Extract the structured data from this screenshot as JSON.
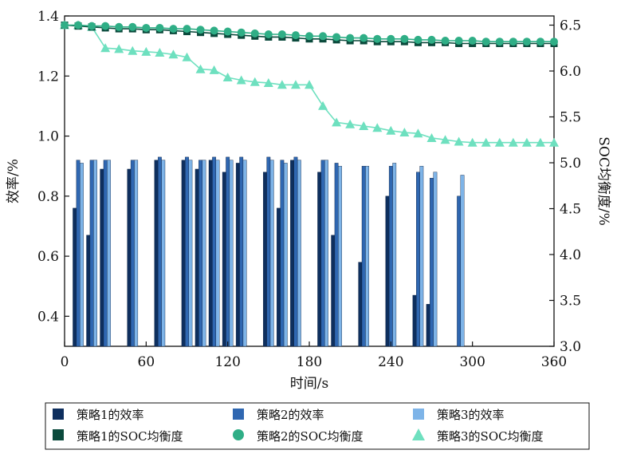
{
  "chart_data": {
    "type": "bar",
    "x_unit_axis": "time",
    "xlabel": "时间/s",
    "ylabel_left": "效率/%",
    "ylabel_right": "SOC均衡度/%",
    "xlim": [
      0,
      360
    ],
    "ylim_left": [
      0.3,
      1.4
    ],
    "ylim_right": [
      3.0,
      6.6
    ],
    "x_ticks": [
      0,
      60,
      120,
      180,
      240,
      300,
      360
    ],
    "y_left_ticks": [
      0.4,
      0.6,
      0.8,
      1.0,
      1.2,
      1.4
    ],
    "y_right_ticks": [
      3.0,
      3.5,
      4.0,
      4.5,
      5.0,
      5.5,
      6.0,
      6.5
    ],
    "legend_position": "bottom",
    "bar_x": [
      10,
      20,
      30,
      50,
      70,
      90,
      100,
      110,
      120,
      130,
      150,
      160,
      170,
      190,
      200,
      220,
      240,
      260,
      270,
      290
    ],
    "bar_series": [
      {
        "name": "策略1的效率",
        "color": "#0e2f5e",
        "values": [
          0.76,
          0.67,
          0.89,
          0.89,
          0.92,
          0.92,
          0.89,
          0.92,
          0.88,
          0.91,
          0.88,
          0.76,
          0.92,
          0.88,
          0.67,
          0.58,
          0.8,
          0.47,
          0.44,
          0.3
        ]
      },
      {
        "name": "策略2的效率",
        "color": "#2f67b1",
        "values": [
          0.92,
          0.92,
          0.92,
          0.92,
          0.93,
          0.93,
          0.92,
          0.93,
          0.93,
          0.93,
          0.93,
          0.92,
          0.93,
          0.92,
          0.91,
          0.9,
          0.9,
          0.88,
          0.86,
          0.8
        ]
      },
      {
        "name": "策略3的效率",
        "color": "#7eb4e8",
        "values": [
          0.91,
          0.92,
          0.92,
          0.92,
          0.92,
          0.92,
          0.92,
          0.92,
          0.92,
          0.92,
          0.92,
          0.91,
          0.92,
          0.92,
          0.9,
          0.9,
          0.91,
          0.9,
          0.88,
          0.87
        ]
      }
    ],
    "soc_x": [
      0,
      10,
      20,
      30,
      40,
      50,
      60,
      70,
      80,
      90,
      100,
      110,
      120,
      130,
      140,
      150,
      160,
      170,
      180,
      190,
      200,
      210,
      220,
      230,
      240,
      250,
      260,
      270,
      280,
      290,
      300,
      310,
      320,
      330,
      340,
      350,
      360
    ],
    "soc_series": [
      {
        "name": "策略1的SOC均衡度",
        "color": "#0b4a3c",
        "marker": "square",
        "values": [
          6.5,
          6.49,
          6.48,
          6.47,
          6.46,
          6.46,
          6.45,
          6.45,
          6.44,
          6.43,
          6.42,
          6.41,
          6.4,
          6.39,
          6.38,
          6.37,
          6.37,
          6.36,
          6.35,
          6.35,
          6.34,
          6.33,
          6.33,
          6.32,
          6.32,
          6.32,
          6.31,
          6.31,
          6.31,
          6.3,
          6.3,
          6.3,
          6.3,
          6.3,
          6.3,
          6.3,
          6.3
        ]
      },
      {
        "name": "策略2的SOC均衡度",
        "color": "#2fae86",
        "marker": "circle",
        "values": [
          6.5,
          6.5,
          6.49,
          6.49,
          6.48,
          6.48,
          6.47,
          6.47,
          6.46,
          6.46,
          6.45,
          6.44,
          6.43,
          6.42,
          6.41,
          6.4,
          6.4,
          6.39,
          6.38,
          6.38,
          6.37,
          6.36,
          6.36,
          6.35,
          6.35,
          6.35,
          6.34,
          6.34,
          6.33,
          6.33,
          6.33,
          6.32,
          6.32,
          6.32,
          6.32,
          6.32,
          6.32
        ]
      },
      {
        "name": "策略3的SOC均衡度",
        "color": "#6ee0bf",
        "marker": "triangle",
        "values": [
          6.5,
          6.5,
          6.48,
          6.25,
          6.24,
          6.22,
          6.21,
          6.2,
          6.18,
          6.15,
          6.02,
          6.01,
          5.93,
          5.9,
          5.88,
          5.87,
          5.85,
          5.85,
          5.85,
          5.62,
          5.44,
          5.42,
          5.4,
          5.38,
          5.35,
          5.33,
          5.32,
          5.27,
          5.25,
          5.23,
          5.22,
          5.22,
          5.22,
          5.22,
          5.22,
          5.22,
          5.22
        ]
      }
    ]
  }
}
